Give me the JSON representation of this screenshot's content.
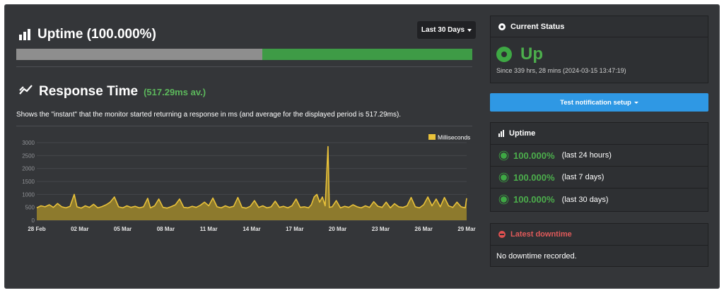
{
  "uptime_section": {
    "title": "Uptime (100.000%)",
    "range_label": "Last 30 Days",
    "bar_grey_fraction": 0.54,
    "bar_green_fraction": 0.46
  },
  "response_time": {
    "title": "Response Time",
    "average": "(517.29ms av.)",
    "description": "Shows the \"instant\" that the monitor started returning a response in ms (and average for the displayed period is 517.29ms)."
  },
  "chart_data": {
    "type": "area",
    "xlabel": "",
    "ylabel": "",
    "legend": "Milliseconds",
    "legend_position": "top-right",
    "ylim": [
      0,
      3000
    ],
    "yticks": [
      0,
      500,
      1000,
      1500,
      2000,
      2500,
      3000
    ],
    "xticks": [
      "28 Feb",
      "02 Mar",
      "05 Mar",
      "08 Mar",
      "11 Mar",
      "14 Mar",
      "17 Mar",
      "20 Mar",
      "23 Mar",
      "26 Mar",
      "29 Mar"
    ],
    "x_day_range": [
      0,
      31
    ],
    "grid": true,
    "series_color": "#e9c23a",
    "fill_color": "#8d7a2d",
    "series": [
      {
        "name": "Milliseconds",
        "points": [
          [
            0.0,
            480
          ],
          [
            0.3,
            560
          ],
          [
            0.6,
            520
          ],
          [
            0.9,
            600
          ],
          [
            1.2,
            500
          ],
          [
            1.5,
            650
          ],
          [
            1.8,
            520
          ],
          [
            2.1,
            480
          ],
          [
            2.4,
            540
          ],
          [
            2.7,
            1000
          ],
          [
            2.9,
            520
          ],
          [
            3.2,
            470
          ],
          [
            3.5,
            560
          ],
          [
            3.8,
            500
          ],
          [
            4.1,
            620
          ],
          [
            4.4,
            480
          ],
          [
            4.7,
            530
          ],
          [
            5.0,
            600
          ],
          [
            5.3,
            700
          ],
          [
            5.6,
            900
          ],
          [
            5.9,
            520
          ],
          [
            6.2,
            480
          ],
          [
            6.5,
            560
          ],
          [
            6.8,
            500
          ],
          [
            7.1,
            540
          ],
          [
            7.4,
            480
          ],
          [
            7.7,
            520
          ],
          [
            8.0,
            850
          ],
          [
            8.2,
            480
          ],
          [
            8.5,
            560
          ],
          [
            8.8,
            820
          ],
          [
            9.1,
            500
          ],
          [
            9.4,
            470
          ],
          [
            9.7,
            530
          ],
          [
            10.0,
            600
          ],
          [
            10.3,
            820
          ],
          [
            10.6,
            500
          ],
          [
            10.9,
            480
          ],
          [
            11.2,
            540
          ],
          [
            11.5,
            500
          ],
          [
            11.8,
            580
          ],
          [
            12.1,
            700
          ],
          [
            12.4,
            560
          ],
          [
            12.7,
            860
          ],
          [
            13.0,
            520
          ],
          [
            13.3,
            480
          ],
          [
            13.6,
            560
          ],
          [
            13.9,
            500
          ],
          [
            14.2,
            540
          ],
          [
            14.5,
            880
          ],
          [
            14.8,
            500
          ],
          [
            15.1,
            470
          ],
          [
            15.4,
            540
          ],
          [
            15.7,
            760
          ],
          [
            16.0,
            500
          ],
          [
            16.3,
            560
          ],
          [
            16.6,
            480
          ],
          [
            16.9,
            520
          ],
          [
            17.2,
            740
          ],
          [
            17.5,
            500
          ],
          [
            17.8,
            540
          ],
          [
            18.1,
            480
          ],
          [
            18.4,
            560
          ],
          [
            18.7,
            820
          ],
          [
            19.0,
            500
          ],
          [
            19.3,
            520
          ],
          [
            19.6,
            480
          ],
          [
            19.8,
            600
          ],
          [
            20.0,
            900
          ],
          [
            20.2,
            1000
          ],
          [
            20.4,
            700
          ],
          [
            20.6,
            900
          ],
          [
            20.8,
            560
          ],
          [
            21.0,
            2850
          ],
          [
            21.1,
            500
          ],
          [
            21.3,
            520
          ],
          [
            21.6,
            760
          ],
          [
            21.9,
            480
          ],
          [
            22.2,
            540
          ],
          [
            22.5,
            500
          ],
          [
            22.8,
            600
          ],
          [
            23.1,
            520
          ],
          [
            23.4,
            480
          ],
          [
            23.7,
            560
          ],
          [
            24.0,
            500
          ],
          [
            24.3,
            720
          ],
          [
            24.6,
            540
          ],
          [
            24.9,
            500
          ],
          [
            25.2,
            700
          ],
          [
            25.5,
            480
          ],
          [
            25.8,
            640
          ],
          [
            26.1,
            520
          ],
          [
            26.4,
            500
          ],
          [
            26.7,
            560
          ],
          [
            27.0,
            880
          ],
          [
            27.3,
            520
          ],
          [
            27.6,
            480
          ],
          [
            27.9,
            600
          ],
          [
            28.2,
            900
          ],
          [
            28.5,
            560
          ],
          [
            28.8,
            820
          ],
          [
            29.1,
            520
          ],
          [
            29.4,
            880
          ],
          [
            29.7,
            560
          ],
          [
            30.0,
            500
          ],
          [
            30.3,
            700
          ],
          [
            30.6,
            520
          ],
          [
            30.9,
            480
          ],
          [
            31.0,
            850
          ]
        ]
      }
    ]
  },
  "current_status": {
    "title": "Current Status",
    "state": "Up",
    "since": "Since 339 hrs, 28 mins (2024-03-15 13:47:19)"
  },
  "test_notification": {
    "label": "Test notification setup"
  },
  "uptime_panel": {
    "title": "Uptime",
    "rows": [
      {
        "pct": "100.000%",
        "label": "(last 24 hours)"
      },
      {
        "pct": "100.000%",
        "label": "(last 7 days)"
      },
      {
        "pct": "100.000%",
        "label": "(last 30 days)"
      }
    ]
  },
  "latest_downtime": {
    "title": "Latest downtime",
    "text": "No downtime recorded."
  },
  "icons": {
    "uptime": "bar-chart-icon",
    "response": "trend-line-icon",
    "status": "dot-circle-icon",
    "up": "up-circle-icon",
    "row": "green-badge-icon",
    "downtime": "minus-circle-icon"
  }
}
